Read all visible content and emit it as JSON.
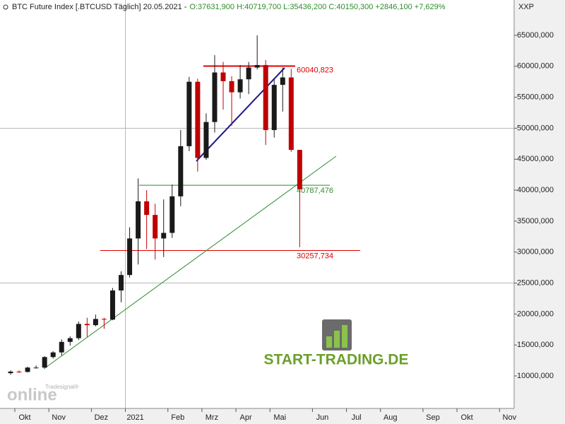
{
  "chart_data": {
    "type": "candlestick",
    "title": "BTC Future Index [.BTCUSD  Täglich] 20.05.2021 -",
    "subtitle": "O:37631,900 H:40719,700 L:35436,200 C:40150,300 +2846,100 +7,629%",
    "axis_label": "XXP",
    "watermark": "START-TRADING.DE",
    "logo": "online",
    "logo_brand": "Tradesignal®",
    "up_color": "#1a1a1a",
    "down_color": "#c00000",
    "categories": [
      null,
      "Okt",
      null,
      null,
      null,
      "Nov",
      null,
      null,
      null,
      null,
      "Dez",
      null,
      null,
      null,
      "2021",
      null,
      null,
      null,
      null,
      "Feb",
      null,
      null,
      null,
      "Mrz",
      null,
      null,
      null,
      "Apr",
      null,
      null,
      null,
      "Mai",
      null,
      null,
      null,
      null,
      "Jun",
      null,
      null,
      null,
      "Jul",
      null,
      null,
      null,
      "Aug",
      null,
      null,
      null,
      null,
      "Sep",
      null,
      null,
      null,
      "Okt",
      null,
      null,
      null,
      null,
      "Nov",
      null,
      null,
      null
    ],
    "series": {
      "open": [
        10450,
        10700,
        10650,
        11350,
        11350,
        13050,
        13800,
        15500,
        16100,
        18400,
        18200,
        19200,
        19100,
        23800,
        26300,
        32200,
        38200,
        36000,
        32200,
        33100,
        39000,
        47100,
        57500,
        45200,
        51000,
        59000,
        57600,
        55800,
        57900,
        59800,
        60200,
        49700,
        57000,
        58200,
        46500,
        null,
        null,
        null,
        null,
        null,
        null,
        null,
        null,
        null,
        null,
        null,
        null,
        null,
        null,
        null,
        null,
        null,
        null,
        null,
        null,
        null,
        null,
        null,
        null,
        null,
        null,
        null
      ],
      "high": [
        10900,
        10900,
        11500,
        11700,
        13200,
        14000,
        15900,
        16400,
        18800,
        19400,
        19900,
        19400,
        24200,
        26900,
        34000,
        41900,
        40000,
        37800,
        38500,
        40900,
        49700,
        58300,
        58000,
        52400,
        61800,
        60700,
        58400,
        60200,
        60700,
        65000,
        61000,
        58000,
        59800,
        59600,
        46500,
        null,
        null,
        null,
        null,
        null,
        null,
        null,
        null,
        null,
        null,
        null,
        null,
        null,
        null,
        null,
        null,
        null,
        null,
        null,
        null,
        null,
        null,
        null,
        null,
        null,
        null,
        null
      ],
      "low": [
        10200,
        10500,
        10550,
        11200,
        11300,
        12800,
        13300,
        14900,
        15800,
        16300,
        18000,
        17600,
        19000,
        21900,
        25900,
        28000,
        30500,
        28800,
        29200,
        32300,
        37400,
        46300,
        43000,
        44900,
        49300,
        53000,
        50400,
        54800,
        55500,
        59500,
        47300,
        48500,
        52700,
        46200,
        30800,
        null,
        null,
        null,
        null,
        null,
        null,
        null,
        null,
        null,
        null,
        null,
        null,
        null,
        null,
        null,
        null,
        null,
        null,
        null,
        null,
        null,
        null,
        null,
        null,
        null,
        null,
        null
      ],
      "close": [
        10700,
        10650,
        11350,
        11350,
        13050,
        13800,
        15500,
        16100,
        18400,
        18200,
        19200,
        19100,
        23800,
        26300,
        32200,
        38200,
        36000,
        32200,
        33100,
        39000,
        47100,
        57500,
        45200,
        51000,
        59000,
        57600,
        55800,
        57900,
        59800,
        60200,
        49700,
        57000,
        58200,
        46500,
        40150,
        null,
        null,
        null,
        null,
        null,
        null,
        null,
        null,
        null,
        null,
        null,
        null,
        null,
        null,
        null,
        null,
        null,
        null,
        null,
        null,
        null,
        null,
        null,
        null,
        null,
        null,
        null
      ]
    },
    "levels": {
      "values": [
        60040.823,
        40787.476,
        30257.734
      ],
      "value_labels": [
        "60040,823",
        "40787,476",
        "30257,734"
      ],
      "colors": [
        "#e00000",
        "#2e8b2e",
        "#e00000"
      ]
    },
    "ylim": [
      4751,
      70703
    ],
    "yticks": [
      {
        "value": 10000,
        "label": "10000,000"
      },
      {
        "value": 15000,
        "label": "15000,000"
      },
      {
        "value": 20000,
        "label": "20000,000"
      },
      {
        "value": 25000,
        "label": "25000,000"
      },
      {
        "value": 30000,
        "label": "30000,000"
      },
      {
        "value": 35000,
        "label": "35000,000"
      },
      {
        "value": 40000,
        "label": "40000,000"
      },
      {
        "value": 45000,
        "label": "45000,000"
      },
      {
        "value": 50000,
        "label": "50000,000"
      },
      {
        "value": 55000,
        "label": "55000,000"
      },
      {
        "value": 60000,
        "label": "60000,000"
      },
      {
        "value": 65000,
        "label": "65000,000"
      }
    ],
    "ygrid": [
      25000,
      50000
    ],
    "xgrid": [
      "2021"
    ]
  }
}
